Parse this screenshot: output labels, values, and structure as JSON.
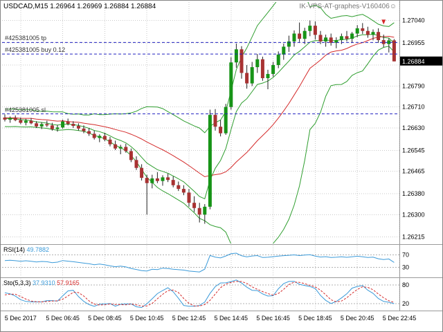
{
  "header": {
    "text": "USDCAD,M15 1.26964 1.26969 1.26884 1.26884",
    "ea_text": "IK-VPS-AT-graphes-V160406☺"
  },
  "orders": [
    {
      "id": "tp",
      "label": "#425381005 tp",
      "price": 1.26956
    },
    {
      "id": "buy",
      "label": "#425381005 buy 0.12",
      "price": 1.26912
    },
    {
      "id": "sl",
      "label": "#425381005 sl",
      "price": 1.26684
    }
  ],
  "price_axis": {
    "labels": [
      {
        "price": 1.2704,
        "text": "1.27040"
      },
      {
        "price": 1.26955,
        "text": "1.26955"
      },
      {
        "price": 1.2679,
        "text": "1.26790"
      },
      {
        "price": 1.2671,
        "text": "1.26710"
      },
      {
        "price": 1.2663,
        "text": "1.26630"
      },
      {
        "price": 1.26545,
        "text": "1.26545"
      },
      {
        "price": 1.26465,
        "text": "1.26465"
      },
      {
        "price": 1.2638,
        "text": "1.26380"
      },
      {
        "price": 1.263,
        "text": "1.26300"
      },
      {
        "price": 1.26215,
        "text": "1.26215"
      }
    ],
    "grid_extra": [
      1.2687
    ],
    "current": {
      "price": 1.26884,
      "text": "1.26884"
    }
  },
  "time_axis": {
    "labels": [
      {
        "idx": 3,
        "text": "5 Dec 2017"
      },
      {
        "idx": 11,
        "text": "5 Dec 06:45"
      },
      {
        "idx": 19,
        "text": "5 Dec 08:45"
      },
      {
        "idx": 27,
        "text": "5 Dec 10:45"
      },
      {
        "idx": 35,
        "text": "5 Dec 12:45"
      },
      {
        "idx": 43,
        "text": "5 Dec 14:45"
      },
      {
        "idx": 51,
        "text": "5 Dec 16:45"
      },
      {
        "idx": 59,
        "text": "5 Dec 18:45"
      },
      {
        "idx": 67,
        "text": "5 Dec 20:45"
      },
      {
        "idx": 75,
        "text": "5 Dec 22:45"
      }
    ]
  },
  "panels": {
    "rsi": {
      "name": "RSI(14)",
      "value": "49.7882",
      "levels": [
        70,
        30
      ]
    },
    "sto": {
      "name": "Sto(5,3,3)",
      "value_main": "37.9310",
      "value_signal": "57.9165",
      "levels": [
        80,
        20
      ]
    }
  },
  "marker": {
    "candle_index": 72,
    "price": 1.2703,
    "shape": "down-arrow"
  },
  "colors": {
    "bull": "#179417",
    "bear": "#a83232",
    "wick": "#222222",
    "bb": "#2f9e2f",
    "ma": "#d42a2a",
    "grid": "#c9c9c9",
    "order_line": "#2020c0",
    "rsi": "#3a9ad9",
    "sto_main": "#3a9ad9",
    "sto_signal": "#d42a2a",
    "axis_text": "#000000",
    "tag_bg": "#000000",
    "tag_text": "#ffffff",
    "separator": "#9a9a9a",
    "level_line": "#b0b0b0"
  },
  "chart_data": {
    "type": "candlestick",
    "symbol": "USDCAD",
    "timeframe": "M15",
    "start_time": "2017-12-05 04:00",
    "interval_minutes": 15,
    "ylim": [
      1.2619,
      1.2711
    ],
    "candles": [
      [
        1.2667,
        1.26682,
        1.26655,
        1.26662
      ],
      [
        1.26662,
        1.26674,
        1.2665,
        1.26668
      ],
      [
        1.26668,
        1.26678,
        1.26656,
        1.2666
      ],
      [
        1.2666,
        1.2667,
        1.26645,
        1.2665
      ],
      [
        1.2665,
        1.26665,
        1.2664,
        1.26658
      ],
      [
        1.26658,
        1.26668,
        1.26644,
        1.26648
      ],
      [
        1.26648,
        1.26656,
        1.2663,
        1.26636
      ],
      [
        1.26636,
        1.26652,
        1.26626,
        1.26645
      ],
      [
        1.26645,
        1.26658,
        1.26634,
        1.2664
      ],
      [
        1.2664,
        1.2665,
        1.2662,
        1.26626
      ],
      [
        1.26626,
        1.26642,
        1.26616,
        1.26632
      ],
      [
        1.26632,
        1.26662,
        1.26628,
        1.26655
      ],
      [
        1.26655,
        1.26666,
        1.2664,
        1.26646
      ],
      [
        1.26646,
        1.26656,
        1.2663,
        1.26638
      ],
      [
        1.26638,
        1.26648,
        1.2662,
        1.26628
      ],
      [
        1.26628,
        1.2664,
        1.2661,
        1.26618
      ],
      [
        1.26618,
        1.2663,
        1.266,
        1.26608
      ],
      [
        1.26608,
        1.2662,
        1.26586,
        1.26592
      ],
      [
        1.26592,
        1.26606,
        1.26576,
        1.266
      ],
      [
        1.266,
        1.26612,
        1.2658,
        1.26586
      ],
      [
        1.26586,
        1.26596,
        1.2656,
        1.26568
      ],
      [
        1.26568,
        1.26582,
        1.26546,
        1.26552
      ],
      [
        1.26552,
        1.26566,
        1.2653,
        1.26558
      ],
      [
        1.26558,
        1.2657,
        1.26536,
        1.26542
      ],
      [
        1.26542,
        1.26552,
        1.265,
        1.26508
      ],
      [
        1.26508,
        1.26522,
        1.2647,
        1.26478
      ],
      [
        1.26478,
        1.26492,
        1.2643,
        1.2644
      ],
      [
        1.2644,
        1.26452,
        1.263,
        1.2642
      ],
      [
        1.2642,
        1.26452,
        1.264,
        1.26438
      ],
      [
        1.26438,
        1.26462,
        1.2642,
        1.26428
      ],
      [
        1.26428,
        1.2645,
        1.2641,
        1.26442
      ],
      [
        1.26442,
        1.26456,
        1.26424,
        1.26432
      ],
      [
        1.26432,
        1.26446,
        1.26404,
        1.26412
      ],
      [
        1.26412,
        1.26426,
        1.2639,
        1.26398
      ],
      [
        1.26398,
        1.26412,
        1.26374,
        1.26384
      ],
      [
        1.26384,
        1.26398,
        1.2633,
        1.26345
      ],
      [
        1.26345,
        1.2637,
        1.2631,
        1.26325
      ],
      [
        1.26325,
        1.26345,
        1.2627,
        1.263
      ],
      [
        1.263,
        1.2634,
        1.26265,
        1.2633
      ],
      [
        1.2633,
        1.267,
        1.2632,
        1.2668
      ],
      [
        1.2668,
        1.26702,
        1.2662,
        1.26635
      ],
      [
        1.26635,
        1.2666,
        1.26598,
        1.2661
      ],
      [
        1.2661,
        1.26722,
        1.26604,
        1.2671
      ],
      [
        1.2671,
        1.269,
        1.267,
        1.2688
      ],
      [
        1.2688,
        1.26952,
        1.2686,
        1.2693
      ],
      [
        1.2693,
        1.26942,
        1.26818,
        1.2684
      ],
      [
        1.2684,
        1.2687,
        1.2678,
        1.268
      ],
      [
        1.268,
        1.26882,
        1.2679,
        1.26862
      ],
      [
        1.26862,
        1.26912,
        1.2684,
        1.26892
      ],
      [
        1.26892,
        1.26902,
        1.2681,
        1.2682
      ],
      [
        1.2682,
        1.26852,
        1.26778,
        1.26836
      ],
      [
        1.26836,
        1.26882,
        1.26826,
        1.2687
      ],
      [
        1.2687,
        1.26922,
        1.26858,
        1.2691
      ],
      [
        1.2691,
        1.26952,
        1.2689,
        1.2694
      ],
      [
        1.2694,
        1.26982,
        1.2692,
        1.2696
      ],
      [
        1.2696,
        1.27002,
        1.2694,
        1.2699
      ],
      [
        1.2699,
        1.27032,
        1.26958,
        1.2697
      ],
      [
        1.2697,
        1.27012,
        1.2695,
        1.27
      ],
      [
        1.27,
        1.2704,
        1.2698,
        1.2702
      ],
      [
        1.2702,
        1.27036,
        1.26968,
        1.26985
      ],
      [
        1.26985,
        1.27,
        1.2695,
        1.2696
      ],
      [
        1.2696,
        1.26986,
        1.2694,
        1.26975
      ],
      [
        1.26975,
        1.2699,
        1.26944,
        1.26955
      ],
      [
        1.26955,
        1.26976,
        1.26934,
        1.26965
      ],
      [
        1.26965,
        1.2699,
        1.2695,
        1.2698
      ],
      [
        1.2698,
        1.27,
        1.2696,
        1.2697
      ],
      [
        1.2697,
        1.26996,
        1.26954,
        1.2699
      ],
      [
        1.2699,
        1.27022,
        1.26976,
        1.2701
      ],
      [
        1.2701,
        1.2703,
        1.26988,
        1.27
      ],
      [
        1.27,
        1.27016,
        1.26974,
        1.26985
      ],
      [
        1.26985,
        1.27006,
        1.26964,
        1.26996
      ],
      [
        1.26996,
        1.2701,
        1.26955,
        1.26965
      ],
      [
        1.26965,
        1.26986,
        1.26938,
        1.2695
      ],
      [
        1.2695,
        1.26972,
        1.26918,
        1.26964
      ],
      [
        1.26964,
        1.26969,
        1.26884,
        1.26884
      ]
    ],
    "prehistory_closes": [
      1.2664,
      1.26672,
      1.26655,
      1.2669,
      1.26662,
      1.26645,
      1.267,
      1.2668,
      1.26652,
      1.26688,
      1.2667,
      1.26642,
      1.26695,
      1.26672,
      1.2665,
      1.26685,
      1.26668,
      1.26648,
      1.26678,
      1.26665
    ],
    "indicators": {
      "bollinger": {
        "period": 20,
        "deviation": 2
      },
      "ma_mid": {
        "period": 20,
        "method": "sma"
      },
      "ma_fast": {
        "period": 8,
        "method": "ema"
      },
      "rsi": {
        "period": 14,
        "current": 49.7882,
        "levels": [
          70,
          30
        ]
      },
      "stochastic": {
        "k": 5,
        "d": 3,
        "slowing": 3,
        "current_main": 37.931,
        "current_signal": 57.9165,
        "levels": [
          80,
          20
        ]
      }
    }
  }
}
